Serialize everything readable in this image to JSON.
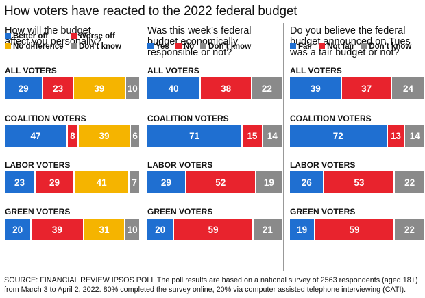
{
  "title": "How voters have reacted to the 2022 federal budget",
  "colors": {
    "blue": "#1f6fd1",
    "red": "#e8232d",
    "yellow": "#f5b400",
    "grey": "#8a8a8a"
  },
  "chart_data": [
    {
      "type": "bar",
      "stacked": true,
      "orientation": "horizontal",
      "title": "How will the budget affect you personally?",
      "title_lines": [
        "How will the budget",
        "affect you personally?"
      ],
      "legend": [
        {
          "label": "Better off",
          "color": "#1f6fd1"
        },
        {
          "label": "Worse off",
          "color": "#e8232d"
        },
        {
          "label": "No difference",
          "color": "#f5b400"
        },
        {
          "label": "Don’t know",
          "color": "#8a8a8a"
        }
      ],
      "categories": [
        "ALL VOTERS",
        "COALITION VOTERS",
        "LABOR VOTERS",
        "GREEN VOTERS"
      ],
      "series": [
        {
          "name": "Better off",
          "values": [
            29,
            47,
            23,
            20
          ]
        },
        {
          "name": "Worse off",
          "values": [
            23,
            8,
            29,
            39
          ]
        },
        {
          "name": "No difference",
          "values": [
            39,
            39,
            41,
            31
          ]
        },
        {
          "name": "Don’t know",
          "values": [
            10,
            6,
            7,
            10
          ]
        }
      ]
    },
    {
      "type": "bar",
      "stacked": true,
      "orientation": "horizontal",
      "title": "Was this week’s federal budget economically responsible or not?",
      "title_lines": [
        "Was this week’s federal",
        "budget economically",
        "responsible  or not?"
      ],
      "legend": [
        {
          "label": "Yes",
          "color": "#1f6fd1"
        },
        {
          "label": "No",
          "color": "#e8232d"
        },
        {
          "label": "Don’t know",
          "color": "#8a8a8a"
        }
      ],
      "categories": [
        "ALL VOTERS",
        "COALITION VOTERS",
        "LABOR VOTERS",
        "GREEN VOTERS"
      ],
      "series": [
        {
          "name": "Yes",
          "values": [
            40,
            71,
            29,
            20
          ]
        },
        {
          "name": "No",
          "values": [
            38,
            15,
            52,
            59
          ]
        },
        {
          "name": "Don’t know",
          "values": [
            22,
            14,
            19,
            21
          ]
        }
      ]
    },
    {
      "type": "bar",
      "stacked": true,
      "orientation": "horizontal",
      "title": "Do you believe the federal budget announced on Tues was a fair budget or not?",
      "title_lines": [
        "Do you believe the federal",
        "budget announced on Tues",
        "was a fair budget or not?"
      ],
      "legend": [
        {
          "label": "Fair",
          "color": "#1f6fd1"
        },
        {
          "label": "Not fair",
          "color": "#e8232d"
        },
        {
          "label": "Don’t know",
          "color": "#8a8a8a"
        }
      ],
      "categories": [
        "ALL VOTERS",
        "COALITION VOTERS",
        "LABOR VOTERS",
        "GREEN VOTERS"
      ],
      "series": [
        {
          "name": "Fair",
          "values": [
            39,
            72,
            26,
            19
          ]
        },
        {
          "name": "Not fair",
          "values": [
            37,
            13,
            53,
            59
          ]
        },
        {
          "name": "Don’t know",
          "values": [
            24,
            14,
            22,
            22
          ]
        }
      ]
    }
  ],
  "footer": {
    "line1": "SOURCE: FINANCIAL REVIEW  IPSOS POLL   The poll results are based on a national survey of 2563 respondents (aged 18+)",
    "line2": "from  March 3 to April 2, 2022. 80% completed the survey online, 20% via computer assisted telephone interviewing (CATI)."
  }
}
